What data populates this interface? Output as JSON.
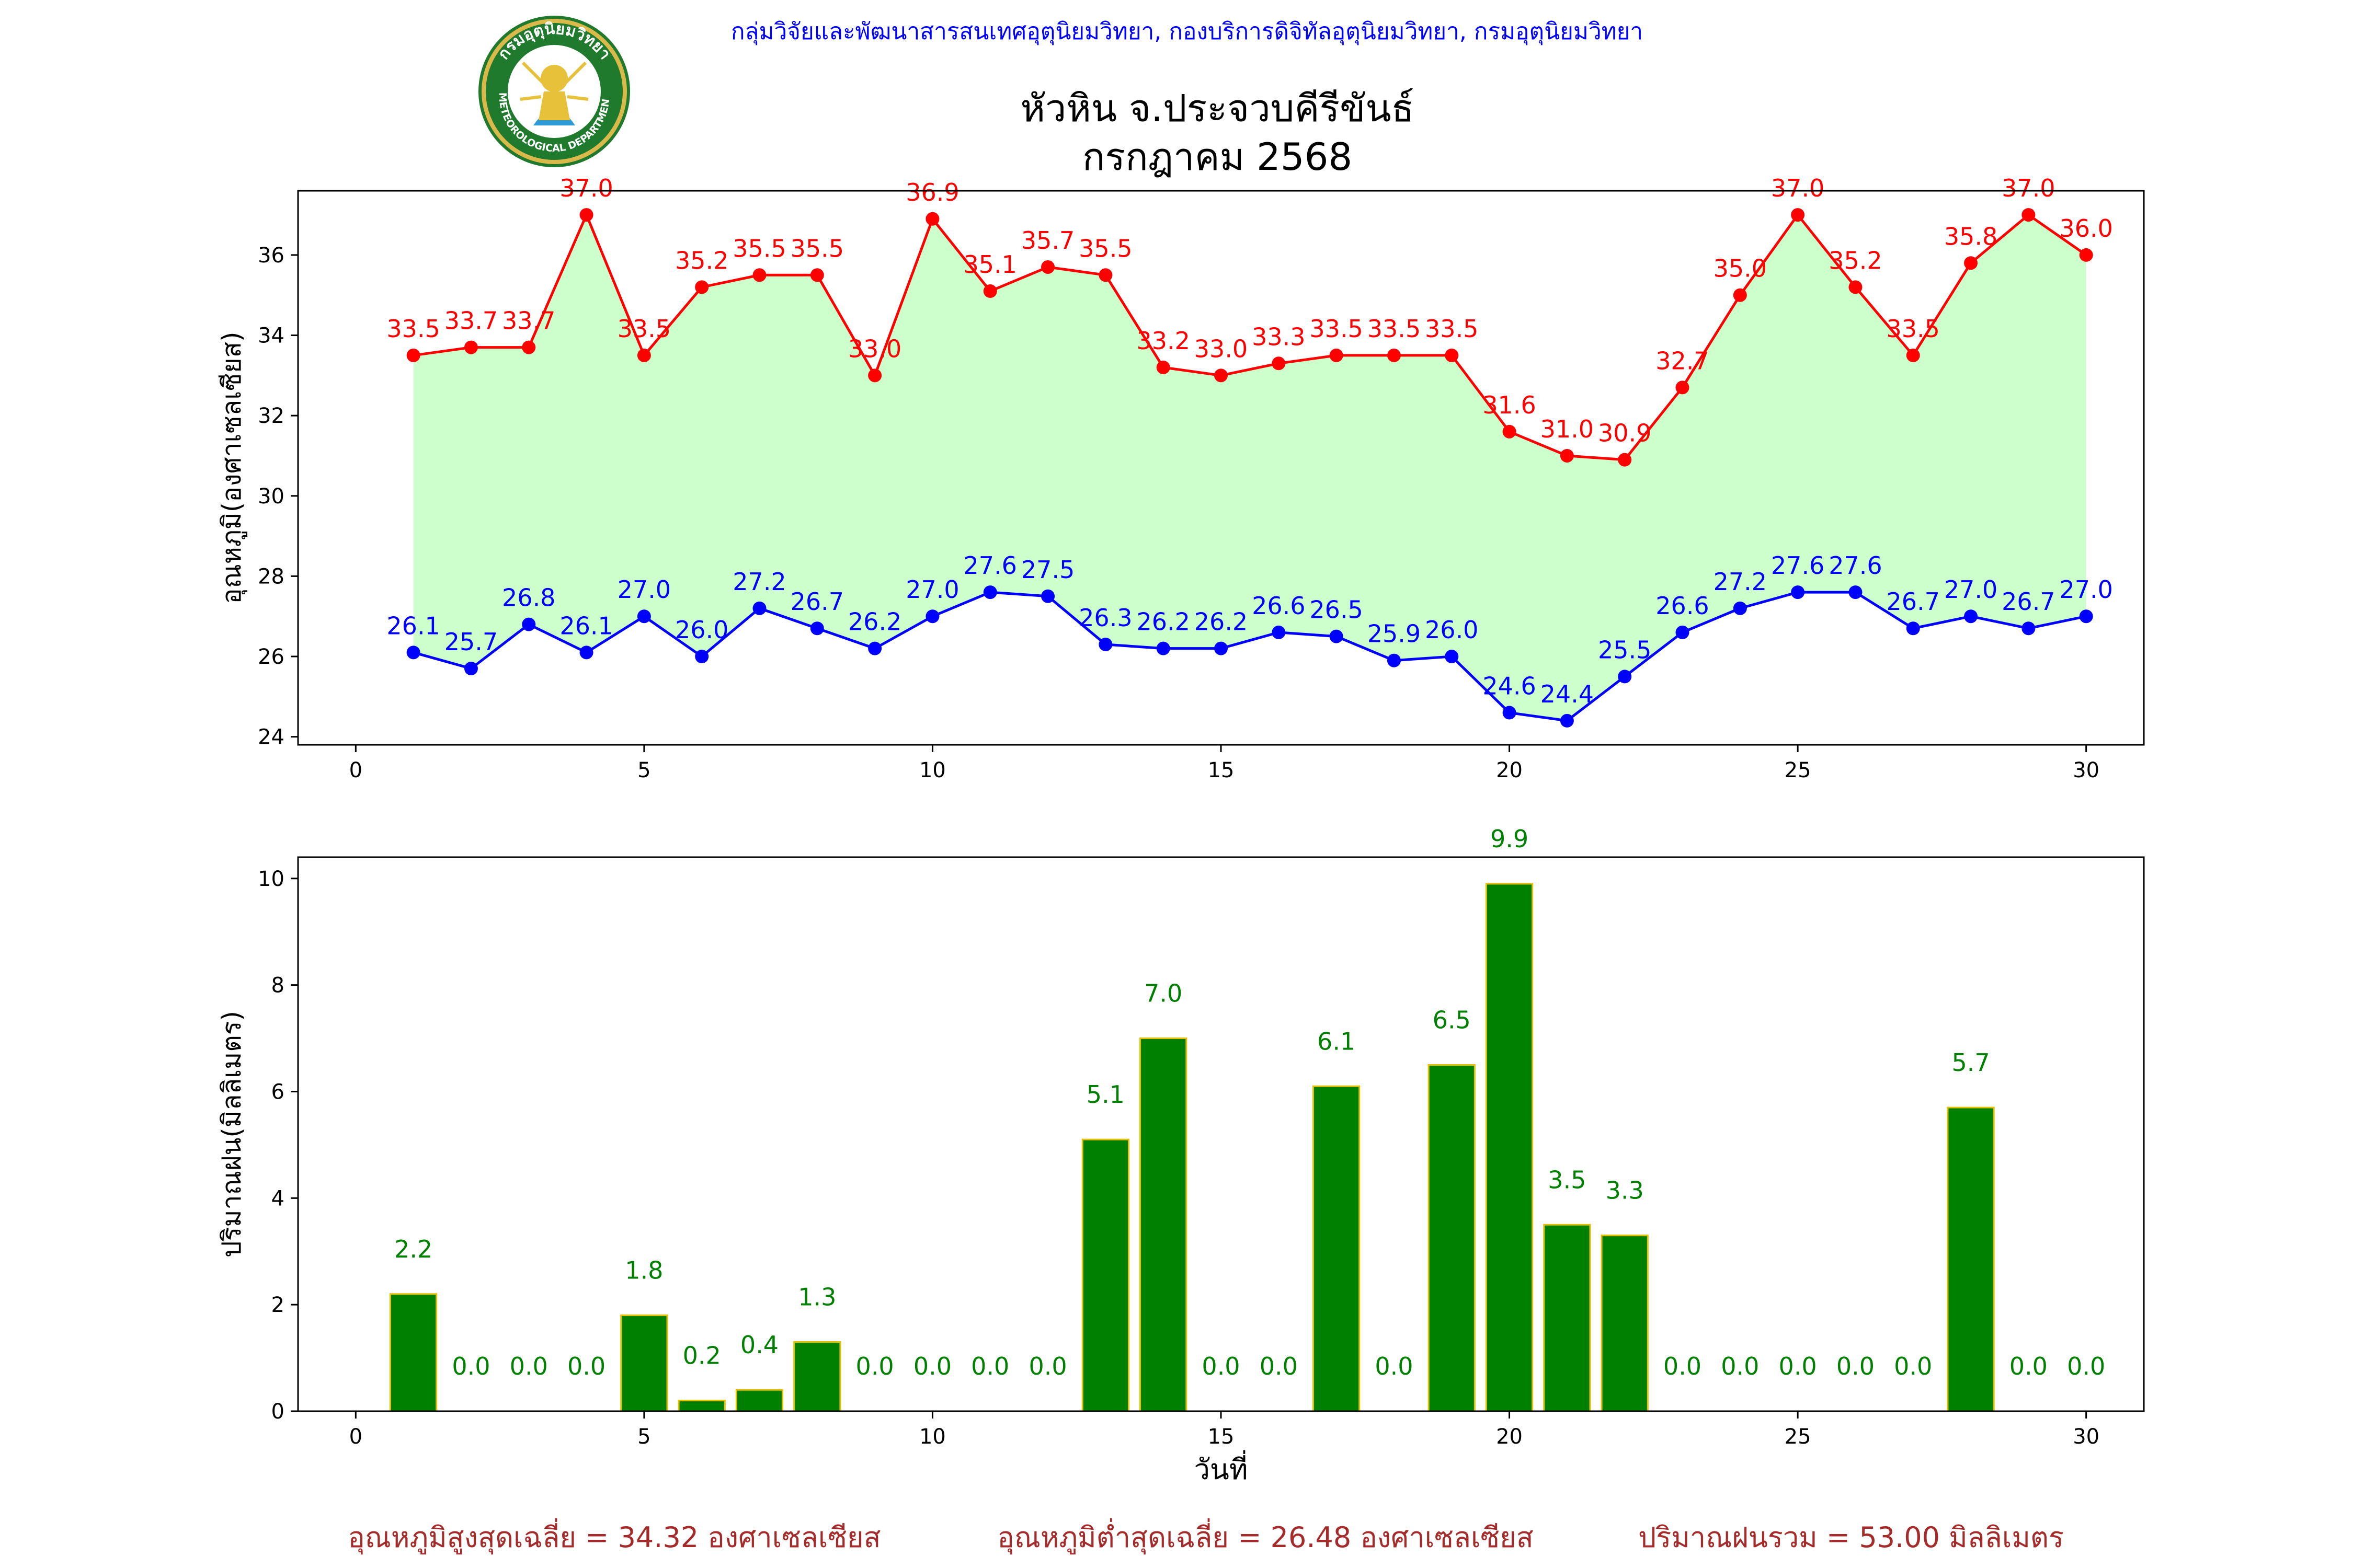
{
  "header": {
    "agency_line": "กลุ่มวิจัยและพัฒนาสารสนเทศอุตุนิยมวิทยา, กองบริการดิจิทัลอุตุนิยมวิทยา, กรมอุตุนิยมวิทยา",
    "title_line1": "หัวหิน จ.ประจวบคีรีขันธ์",
    "title_line2": "กรกฎาคม 2568",
    "logo": {
      "ring_text_top": "กรมอุตุนิยมวิทยา",
      "ring_text_bottom": "METEOROLOGICAL DEPARTMENT"
    }
  },
  "colors": {
    "accent_blue": "#0000ff",
    "max_red": "#ff0000",
    "min_blue": "#0000ff",
    "fill_green": "#ccffcc",
    "bar_green": "#008000",
    "bar_edge": "#e6c000",
    "footer_red": "#a52a2a"
  },
  "chart_data": [
    {
      "type": "line",
      "ylabel": "อุณหภูมิ(องศาเซลเซียส)",
      "xlim": [
        -1,
        31
      ],
      "ylim": [
        23.8,
        37.6
      ],
      "xticks": [
        0,
        5,
        10,
        15,
        20,
        25,
        30
      ],
      "yticks": [
        24,
        26,
        28,
        30,
        32,
        34,
        36
      ],
      "x": [
        1,
        2,
        3,
        4,
        5,
        6,
        7,
        8,
        9,
        10,
        11,
        12,
        13,
        14,
        15,
        16,
        17,
        18,
        19,
        20,
        21,
        22,
        23,
        24,
        25,
        26,
        27,
        28,
        29,
        30
      ],
      "series": [
        {
          "values": [
            33.5,
            33.7,
            33.7,
            37.0,
            33.5,
            35.2,
            35.5,
            35.5,
            33.0,
            36.9,
            35.1,
            35.7,
            35.5,
            33.2,
            33.0,
            33.3,
            33.5,
            33.5,
            33.5,
            31.6,
            31.0,
            30.9,
            32.7,
            35.0,
            37.0,
            35.2,
            33.5,
            35.8,
            37.0,
            36.0
          ]
        },
        {
          "values": [
            26.1,
            25.7,
            26.8,
            26.1,
            27.0,
            26.0,
            27.2,
            26.7,
            26.2,
            27.0,
            27.6,
            27.5,
            26.3,
            26.2,
            26.2,
            26.6,
            26.5,
            25.9,
            26.0,
            24.6,
            24.4,
            25.5,
            26.6,
            27.2,
            27.6,
            27.6,
            26.7,
            27.0,
            26.7,
            27.0
          ]
        }
      ],
      "grid": false
    },
    {
      "type": "bar",
      "xlabel": "วันที่",
      "ylabel": "ปริมาณฝน(มิลลิเมตร)",
      "xlim": [
        -1,
        31
      ],
      "ylim": [
        0,
        10.4
      ],
      "xticks": [
        0,
        5,
        10,
        15,
        20,
        25,
        30
      ],
      "yticks": [
        0,
        2,
        4,
        6,
        8,
        10
      ],
      "categories": [
        1,
        2,
        3,
        4,
        5,
        6,
        7,
        8,
        9,
        10,
        11,
        12,
        13,
        14,
        15,
        16,
        17,
        18,
        19,
        20,
        21,
        22,
        23,
        24,
        25,
        26,
        27,
        28,
        29,
        30
      ],
      "values": [
        2.2,
        0.0,
        0.0,
        0.0,
        1.8,
        0.2,
        0.4,
        1.3,
        0.0,
        0.0,
        0.0,
        0.0,
        5.1,
        7.0,
        0.0,
        0.0,
        6.1,
        0.0,
        6.5,
        9.9,
        3.5,
        3.3,
        0.0,
        0.0,
        0.0,
        0.0,
        0.0,
        5.7,
        0.0,
        0.0
      ],
      "grid": false
    }
  ],
  "footer": {
    "avg_max": "อุณหภูมิสูงสุดเฉลี่ย = 34.32 องศาเซลเซียส",
    "avg_min": "อุณหภูมิต่ำสุดเฉลี่ย = 26.48 องศาเซลเซียส",
    "total_rain": "ปริมาณฝนรวม = 53.00 มิลลิเมตร"
  }
}
